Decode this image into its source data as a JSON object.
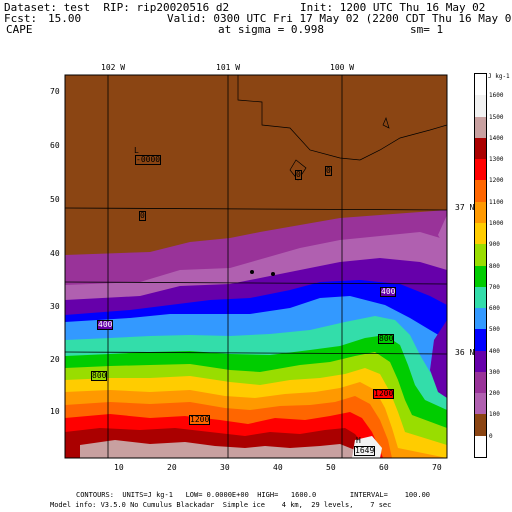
{
  "header": {
    "dataset_line": "Dataset: test  RIP: rip20020516 d2",
    "init_line": "Init: 1200 UTC Thu 16 May 02",
    "fcst_label": "Fcst:",
    "fcst_value": "15.00",
    "valid_line": "Valid: 0300 UTC Fri 17 May 02 (2200 CDT Thu 16 May 02)",
    "field_name": "CAPE",
    "sigma_line": "at sigma = 0.998",
    "sm_line": "sm= 1"
  },
  "longitude_labels": [
    "102 W",
    "101 W",
    "100 W"
  ],
  "latitude_labels": [
    "37 N",
    "36 N"
  ],
  "y_ticks": [
    70,
    60,
    50,
    40,
    30,
    20,
    10
  ],
  "x_ticks": [
    10,
    20,
    30,
    40,
    50,
    60,
    70
  ],
  "contour_labels": [
    "L",
    "-0000",
    "0",
    "0",
    "0",
    "400",
    "400",
    "800",
    "800",
    "1200",
    "1200",
    "H",
    "1649"
  ],
  "colorbar": {
    "units": "J kg-1",
    "levels": [
      1600,
      1500,
      1400,
      1300,
      1200,
      1100,
      1000,
      900,
      800,
      700,
      600,
      500,
      400,
      300,
      200,
      100,
      0
    ],
    "colors": [
      "#ffffff",
      "#f2f2f2",
      "#c8a0a0",
      "#aa0000",
      "#ff0000",
      "#ff6600",
      "#ff9900",
      "#ffcc00",
      "#99dd00",
      "#00cc00",
      "#33ddaa",
      "#3399ff",
      "#0000ff",
      "#6600aa",
      "#993399",
      "#b060b0",
      "#8b4513",
      "#ffffff"
    ]
  },
  "footer": {
    "line1": "CONTOURS:  UNITS=J kg-1   LOW= 0.0000E+00  HIGH=   1600.0        INTERVAL=    100.00",
    "line2": "Model info: V3.5.0 No Cumulus Blackadar  Simple ice    4 km,  29 levels,    7 sec"
  }
}
